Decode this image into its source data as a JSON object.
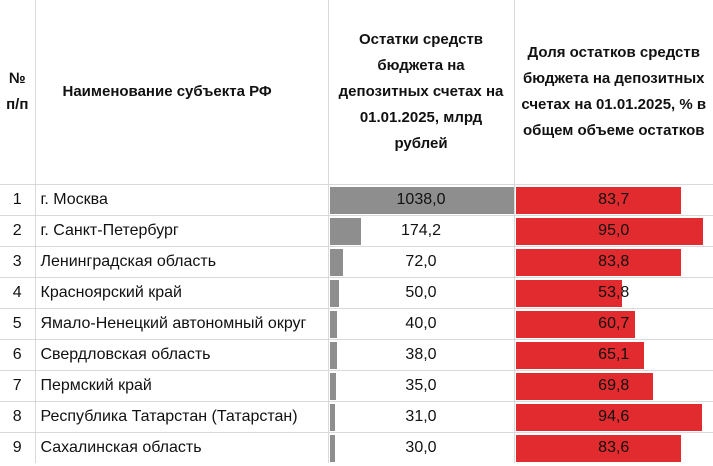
{
  "header": {
    "num": "№ п/п",
    "name": "Наименование субъекта РФ",
    "remain": "Остатки средств бюджета на депозитных счетах на 01.01.2025, млрд рублей",
    "share": "Доля остатков средств бюджета на депозитных счетах на 01.01.2025, % в общем объеме остатков"
  },
  "colors": {
    "gray_bar": "#8e8e8e",
    "red_bar": "#e12b2e"
  },
  "chart_data": {
    "type": "table",
    "columns": [
      "№ п/п",
      "Наименование субъекта РФ",
      "Остатки средств бюджета на депозитных счетах на 01.01.2025, млрд рублей",
      "Доля остатков средств бюджета на депозитных счетах на 01.01.2025, % в общем объеме остатков"
    ],
    "remain_max": 1038.0,
    "share_max": 95.0,
    "rows": [
      {
        "n": "1",
        "name": "г. Москва",
        "remain": "1038,0",
        "remain_v": 1038.0,
        "share": "83,7",
        "share_v": 83.7
      },
      {
        "n": "2",
        "name": "г. Санкт-Петербург",
        "remain": "174,2",
        "remain_v": 174.2,
        "share": "95,0",
        "share_v": 95.0
      },
      {
        "n": "3",
        "name": "Ленинградская область",
        "remain": "72,0",
        "remain_v": 72.0,
        "share": "83,8",
        "share_v": 83.8
      },
      {
        "n": "4",
        "name": "Красноярский край",
        "remain": "50,0",
        "remain_v": 50.0,
        "share": "53,8",
        "share_v": 53.8
      },
      {
        "n": "5",
        "name": "Ямало-Ненецкий автономный округ",
        "remain": "40,0",
        "remain_v": 40.0,
        "share": "60,7",
        "share_v": 60.7
      },
      {
        "n": "6",
        "name": "Свердловская область",
        "remain": "38,0",
        "remain_v": 38.0,
        "share": "65,1",
        "share_v": 65.1
      },
      {
        "n": "7",
        "name": "Пермский край",
        "remain": "35,0",
        "remain_v": 35.0,
        "share": "69,8",
        "share_v": 69.8
      },
      {
        "n": "8",
        "name": "Республика Татарстан (Татарстан)",
        "remain": "31,0",
        "remain_v": 31.0,
        "share": "94,6",
        "share_v": 94.6
      },
      {
        "n": "9",
        "name": "Сахалинская область",
        "remain": "30,0",
        "remain_v": 30.0,
        "share": "83,6",
        "share_v": 83.6
      }
    ]
  }
}
